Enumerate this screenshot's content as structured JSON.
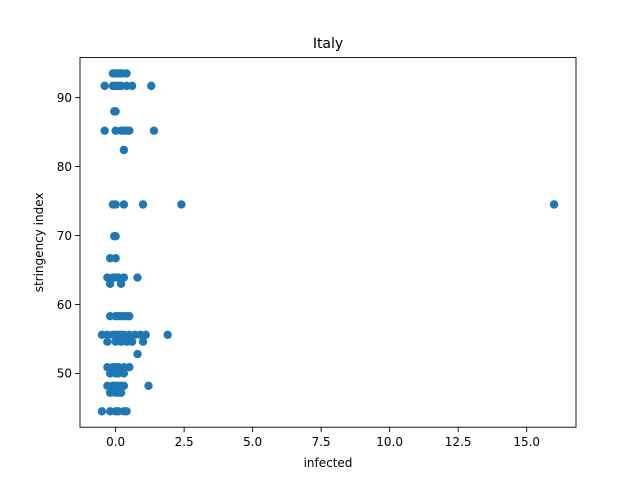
{
  "chart_data": {
    "type": "scatter",
    "title": "Italy",
    "xlabel": "infected",
    "ylabel": "stringency index",
    "xlim": [
      -1.3,
      16.8
    ],
    "ylim": [
      42.2,
      95.8
    ],
    "xticks": [
      0.0,
      2.5,
      5.0,
      7.5,
      10.0,
      12.5,
      15.0
    ],
    "xtick_labels": [
      "0.0",
      "2.5",
      "5.0",
      "7.5",
      "10.0",
      "12.5",
      "15.0"
    ],
    "yticks": [
      50,
      60,
      70,
      80,
      90
    ],
    "ytick_labels": [
      "50",
      "60",
      "70",
      "80",
      "90"
    ],
    "grid": false,
    "marker_color": "#1f77b4",
    "series": [
      {
        "x": [
          -0.1,
          0.0,
          0.1,
          0.2,
          0.4,
          -0.05,
          0.15,
          0.25,
          -0.4,
          -0.1,
          0.0,
          0.1,
          0.2,
          0.4,
          0.6,
          1.3,
          -0.05,
          0.0,
          -0.4,
          0.0,
          0.2,
          0.3,
          0.4,
          0.5,
          1.4,
          0.3,
          -0.1,
          0.0,
          0.3,
          1.0,
          2.4,
          16.0,
          -0.05,
          0.0,
          -0.2,
          0.0,
          -0.3,
          -0.1,
          0.0,
          0.1,
          0.3,
          0.8,
          -0.2,
          0.2,
          -0.2,
          0.0,
          0.1,
          0.2,
          0.3,
          0.4,
          0.5,
          -0.5,
          -0.3,
          -0.1,
          0.0,
          0.1,
          0.2,
          0.3,
          0.5,
          0.7,
          0.9,
          1.1,
          1.9,
          -0.3,
          0.0,
          0.2,
          0.4,
          0.6,
          1.0,
          0.8,
          -0.3,
          -0.1,
          0.0,
          0.1,
          0.3,
          0.5,
          -0.2,
          0.0,
          0.1,
          0.3,
          -0.3,
          -0.1,
          0.0,
          0.1,
          0.2,
          0.3,
          1.2,
          -0.2,
          0.0,
          0.1,
          0.2,
          -0.5,
          -0.2,
          0.0,
          0.1,
          0.3,
          0.4
        ],
        "y": [
          93.5,
          93.5,
          93.5,
          93.5,
          93.5,
          93.5,
          93.5,
          93.5,
          91.7,
          91.7,
          91.7,
          91.7,
          91.7,
          91.7,
          91.7,
          91.7,
          88.0,
          88.0,
          85.2,
          85.2,
          85.2,
          85.2,
          85.2,
          85.2,
          85.2,
          82.4,
          74.5,
          74.5,
          74.5,
          74.5,
          74.5,
          74.5,
          69.9,
          69.9,
          66.7,
          66.7,
          63.9,
          63.9,
          63.9,
          63.9,
          63.9,
          63.9,
          63.0,
          63.0,
          58.3,
          58.3,
          58.3,
          58.3,
          58.3,
          58.3,
          58.3,
          55.6,
          55.6,
          55.6,
          55.6,
          55.6,
          55.6,
          55.6,
          55.6,
          55.6,
          55.6,
          55.6,
          55.6,
          54.6,
          54.6,
          54.6,
          54.6,
          54.6,
          54.6,
          52.8,
          50.9,
          50.9,
          50.9,
          50.9,
          50.9,
          50.9,
          50.0,
          50.0,
          50.0,
          50.0,
          48.2,
          48.2,
          48.2,
          48.2,
          48.2,
          48.2,
          48.2,
          47.2,
          47.2,
          47.2,
          47.2,
          44.5,
          44.5,
          44.5,
          44.5,
          44.5,
          44.5
        ]
      }
    ]
  }
}
